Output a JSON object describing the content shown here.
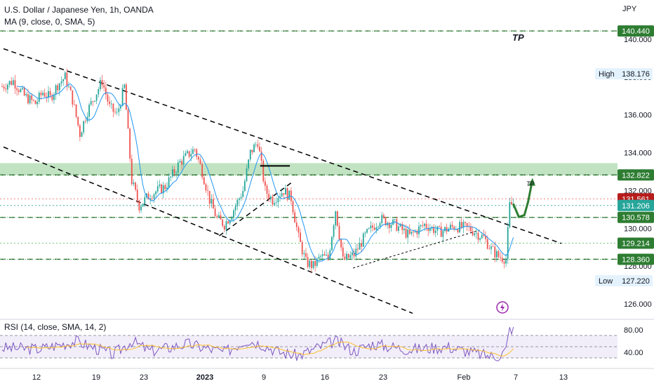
{
  "header": {
    "symbol_title": "U.S. Dollar / Japanese Yen, 1h, OANDA",
    "ma_indicator": "MA (9, close, 0, SMA, 5)",
    "rsi_indicator": "RSI (14, close, SMA, 14, 2)",
    "currency": "JPY"
  },
  "annotations": {
    "tp_large": "TP",
    "tp_small": "TP"
  },
  "colors": {
    "up": "#26a69a",
    "down": "#ef5350",
    "ma": "#2196f3",
    "dashed": "#000000",
    "green_zone": "#4caf50",
    "rsi": "#7e57c2"
  },
  "chart_data": {
    "type": "candlestick",
    "title": "U.S. Dollar / Japanese Yen, 1h, OANDA",
    "y_ticks": [
      "140.000",
      "138.000",
      "136.000",
      "134.000",
      "132.000",
      "130.000",
      "128.000",
      "126.000"
    ],
    "x_ticks": [
      "12",
      "19",
      "23",
      "2023",
      "9",
      "16",
      "23",
      "Feb",
      "7",
      "13"
    ],
    "price_labels": [
      {
        "label": "140.440",
        "price": 140.44,
        "style": "green"
      },
      {
        "label": "132.822",
        "price": 132.822,
        "style": "green"
      },
      {
        "label": "131.561",
        "price": 131.561,
        "style": "red"
      },
      {
        "label": "131.206",
        "price": 131.206,
        "style": "teal"
      },
      {
        "label": "130.578",
        "price": 130.578,
        "style": "green"
      },
      {
        "label": "129.214",
        "price": 129.214,
        "style": "green"
      },
      {
        "label": "128.360",
        "price": 128.36,
        "style": "green"
      }
    ],
    "high": {
      "label": "High",
      "value": "138.176"
    },
    "low": {
      "label": "Low",
      "value": "127.220"
    },
    "green_zone": [
      132.822,
      133.45
    ],
    "close_path": [
      [
        0,
        137.5
      ],
      [
        3,
        137.8
      ],
      [
        6,
        137.0
      ],
      [
        9,
        136.6
      ],
      [
        11,
        137.2
      ],
      [
        13,
        136.9
      ],
      [
        15,
        137.6
      ],
      [
        17,
        138.0
      ],
      [
        19,
        136.8
      ],
      [
        21,
        135.0
      ],
      [
        23,
        136.2
      ],
      [
        25,
        137.0
      ],
      [
        27,
        137.8
      ],
      [
        29,
        136.4
      ],
      [
        31,
        136.0
      ],
      [
        33,
        137.5
      ],
      [
        35,
        132.5
      ],
      [
        37,
        131.2
      ],
      [
        40,
        131.8
      ],
      [
        44,
        132.2
      ],
      [
        48,
        133.5
      ],
      [
        52,
        134.2
      ],
      [
        54,
        133.0
      ],
      [
        56,
        131.5
      ],
      [
        58,
        130.5
      ],
      [
        60,
        130.2
      ],
      [
        62,
        130.8
      ],
      [
        65,
        132.0
      ],
      [
        67,
        134.0
      ],
      [
        69,
        134.6
      ],
      [
        71,
        132.0
      ],
      [
        73,
        131.5
      ],
      [
        76,
        132.0
      ],
      [
        78,
        131.6
      ],
      [
        80,
        129.5
      ],
      [
        82,
        128.2
      ],
      [
        84,
        128.0
      ],
      [
        86,
        128.5
      ],
      [
        88,
        128.4
      ],
      [
        90,
        131.0
      ],
      [
        92,
        128.3
      ],
      [
        95,
        128.6
      ],
      [
        98,
        129.6
      ],
      [
        102,
        130.5
      ],
      [
        106,
        130.2
      ],
      [
        110,
        129.6
      ],
      [
        114,
        130.2
      ],
      [
        118,
        129.8
      ],
      [
        122,
        130.1
      ],
      [
        126,
        130.0
      ],
      [
        130,
        129.5
      ],
      [
        132,
        128.9
      ],
      [
        134,
        128.5
      ],
      [
        136,
        128.4
      ],
      [
        137,
        131.2
      ],
      [
        138,
        131.3
      ]
    ],
    "projection_path": [
      [
        138,
        131.3
      ],
      [
        139.5,
        130.6
      ],
      [
        141,
        130.7
      ],
      [
        142,
        131.4
      ],
      [
        143,
        132.4
      ]
    ],
    "trendlines": [
      {
        "from": [
          0,
          139.5
        ],
        "to": [
          150,
          129.2
        ],
        "style": "dashed"
      },
      {
        "from": [
          0,
          134.3
        ],
        "to": [
          110,
          125.5
        ],
        "style": "dashed"
      },
      {
        "from": [
          58,
          129.6
        ],
        "to": [
          78,
          132.5
        ],
        "style": "dashed"
      },
      {
        "from": [
          94,
          127.9
        ],
        "to": [
          128,
          129.9
        ],
        "style": "dashed-thin"
      }
    ],
    "horizontal_levels": [
      {
        "price": 140.44,
        "style": "dashed-green"
      },
      {
        "price": 132.822,
        "style": "dashed-green"
      },
      {
        "price": 130.578,
        "style": "dashed-green"
      },
      {
        "price": 128.36,
        "style": "dashed-green"
      }
    ],
    "segment_level": {
      "price": 133.3,
      "from": 69,
      "to": 77
    },
    "rsi": {
      "ticks": [
        "80.00",
        "40.00"
      ],
      "upper": 70,
      "mid": 50,
      "lower": 30,
      "values_path": [
        [
          0,
          48
        ],
        [
          10,
          46
        ],
        [
          20,
          60
        ],
        [
          30,
          36
        ],
        [
          35,
          60
        ],
        [
          40,
          42
        ],
        [
          50,
          55
        ],
        [
          60,
          40
        ],
        [
          66,
          62
        ],
        [
          70,
          55
        ],
        [
          75,
          40
        ],
        [
          80,
          34
        ],
        [
          85,
          48
        ],
        [
          90,
          60
        ],
        [
          95,
          42
        ],
        [
          100,
          55
        ],
        [
          110,
          45
        ],
        [
          120,
          50
        ],
        [
          130,
          35
        ],
        [
          134,
          32
        ],
        [
          136,
          45
        ],
        [
          137,
          82
        ]
      ]
    }
  }
}
